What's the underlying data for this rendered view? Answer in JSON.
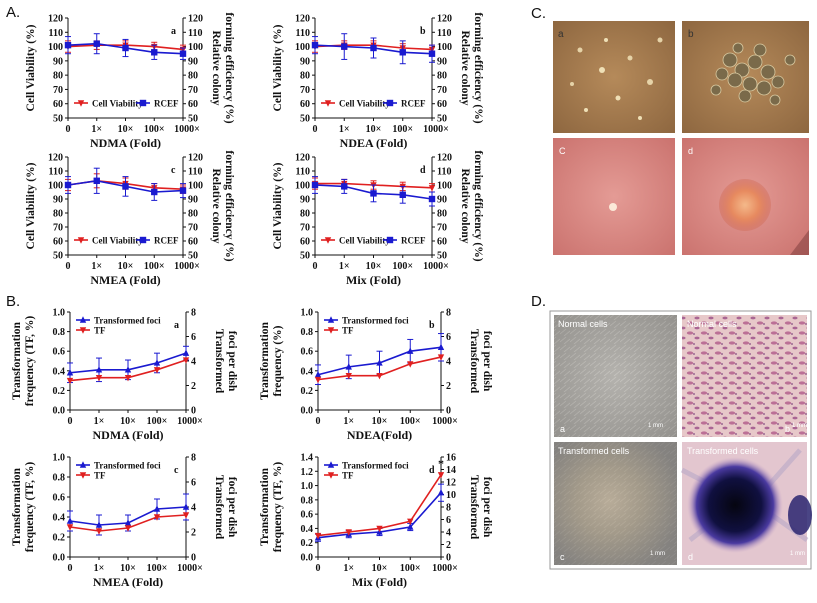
{
  "panels": {
    "A": "A.",
    "B": "B.",
    "C": "C.",
    "D": "D."
  },
  "chart_data": [
    {
      "id": "A-a",
      "type": "line",
      "sub": "a",
      "xlabel": "NDMA (Fold)",
      "ylabel": "Cell Viability (%)",
      "y2label": [
        "Relative colony",
        "forming efficiency (%)"
      ],
      "categories": [
        "0",
        "1×",
        "10×",
        "100×",
        "1000×"
      ],
      "ylim": [
        50,
        120
      ],
      "yticks": [
        50,
        60,
        70,
        80,
        90,
        100,
        110,
        120
      ],
      "y2lim": [
        50,
        120
      ],
      "y2ticks": [
        50,
        60,
        70,
        80,
        90,
        100,
        110,
        120
      ],
      "legend": "bottom",
      "series": [
        {
          "name": "Cell Viability",
          "color": "#e02020",
          "marker": "triangle-down",
          "values": [
            100,
            101,
            101,
            100,
            98
          ],
          "err": [
            4,
            3,
            3,
            3,
            3
          ]
        },
        {
          "name": "RCEF",
          "color": "#1a1ad0",
          "marker": "square",
          "values": [
            101,
            102,
            99,
            96,
            95
          ],
          "err": [
            6,
            7,
            6,
            5,
            4
          ]
        }
      ]
    },
    {
      "id": "A-b",
      "type": "line",
      "sub": "b",
      "xlabel": "NDEA (Fold)",
      "ylabel": "Cell Viability (%)",
      "y2label": [
        "Relative colony",
        "forming efficiency (%)"
      ],
      "categories": [
        "0",
        "1×",
        "10×",
        "100×",
        "1000×"
      ],
      "ylim": [
        50,
        120
      ],
      "yticks": [
        50,
        60,
        70,
        80,
        90,
        100,
        110,
        120
      ],
      "y2lim": [
        50,
        120
      ],
      "y2ticks": [
        50,
        60,
        70,
        80,
        90,
        100,
        110,
        120
      ],
      "legend": "bottom",
      "series": [
        {
          "name": "Cell Viability",
          "color": "#e02020",
          "marker": "triangle-down",
          "values": [
            100,
            101,
            101,
            99,
            98
          ],
          "err": [
            4,
            3,
            3,
            3,
            3
          ]
        },
        {
          "name": "RCEF",
          "color": "#1a1ad0",
          "marker": "square",
          "values": [
            101,
            100,
            99,
            96,
            95
          ],
          "err": [
            6,
            9,
            7,
            8,
            6
          ]
        }
      ]
    },
    {
      "id": "A-c",
      "type": "line",
      "sub": "c",
      "xlabel": "NMEA (Fold)",
      "ylabel": "Cell Viability (%)",
      "y2label": [
        "Relative colony",
        "forming efficiency (%)"
      ],
      "categories": [
        "0",
        "1×",
        "10×",
        "100×",
        "1000×"
      ],
      "ylim": [
        50,
        120
      ],
      "yticks": [
        50,
        60,
        70,
        80,
        90,
        100,
        110,
        120
      ],
      "y2lim": [
        50,
        120
      ],
      "y2ticks": [
        50,
        60,
        70,
        80,
        90,
        100,
        110,
        120
      ],
      "legend": "bottom",
      "series": [
        {
          "name": "Cell Viability",
          "color": "#e02020",
          "marker": "triangle-down",
          "values": [
            100,
            103,
            101,
            98,
            97
          ],
          "err": [
            4,
            5,
            4,
            3,
            3
          ]
        },
        {
          "name": "RCEF",
          "color": "#1a1ad0",
          "marker": "square",
          "values": [
            100,
            103,
            99,
            95,
            96
          ],
          "err": [
            6,
            9,
            7,
            6,
            5
          ]
        }
      ]
    },
    {
      "id": "A-d",
      "type": "line",
      "sub": "d",
      "xlabel": "Mix (Fold)",
      "ylabel": "Cell Viability (%)",
      "y2label": [
        "Relative colony",
        "forming efficiency (%)"
      ],
      "categories": [
        "0",
        "1×",
        "10×",
        "100×",
        "1000×"
      ],
      "ylim": [
        50,
        120
      ],
      "yticks": [
        50,
        60,
        70,
        80,
        90,
        100,
        110,
        120
      ],
      "y2lim": [
        50,
        120
      ],
      "y2ticks": [
        50,
        60,
        70,
        80,
        90,
        100,
        110,
        120
      ],
      "legend": "bottom",
      "series": [
        {
          "name": "Cell Viability",
          "color": "#e02020",
          "marker": "triangle-down",
          "values": [
            101,
            101,
            100,
            99,
            98
          ],
          "err": [
            4,
            3,
            3,
            3,
            3
          ]
        },
        {
          "name": "RCEF",
          "color": "#1a1ad0",
          "marker": "square",
          "values": [
            100,
            99,
            94,
            93,
            90
          ],
          "err": [
            6,
            5,
            6,
            6,
            5
          ]
        }
      ]
    },
    {
      "id": "B-a",
      "type": "line",
      "sub": "a",
      "xlabel": "NDMA (Fold)",
      "ylabel": [
        "Transformation",
        "frequency (TF, %)"
      ],
      "y2label": [
        "Transformed",
        "foci per dish"
      ],
      "categories": [
        "0",
        "1×",
        "10×",
        "100×",
        "1000×"
      ],
      "ylim": [
        0,
        1.0
      ],
      "yticks": [
        0,
        0.2,
        0.4,
        0.6,
        0.8,
        1.0
      ],
      "ytickfmt": 1,
      "y2lim": [
        0,
        8
      ],
      "y2ticks": [
        0,
        2,
        4,
        6,
        8
      ],
      "legend": "top",
      "series": [
        {
          "name": "Transformed foci",
          "color": "#1a1ad0",
          "marker": "triangle-up",
          "values": [
            0.38,
            0.41,
            0.41,
            0.48,
            0.58
          ],
          "err": [
            0.1,
            0.12,
            0.1,
            0.1,
            0.07
          ]
        },
        {
          "name": "TF",
          "color": "#e02020",
          "marker": "triangle-down",
          "values": [
            0.3,
            0.33,
            0.33,
            0.41,
            0.51
          ],
          "err": [
            0,
            0,
            0,
            0,
            0
          ]
        }
      ]
    },
    {
      "id": "B-b",
      "type": "line",
      "sub": "b",
      "xlabel": "NDEA(Fold)",
      "ylabel": [
        "Transformation",
        "frequency (%)"
      ],
      "y2label": [
        "Transformed",
        "foci per dish"
      ],
      "categories": [
        "0",
        "1×",
        "10×",
        "100×",
        "1000×"
      ],
      "ylim": [
        0,
        1.0
      ],
      "yticks": [
        0,
        0.2,
        0.4,
        0.6,
        0.8,
        1.0
      ],
      "ytickfmt": 1,
      "y2lim": [
        0,
        8
      ],
      "y2ticks": [
        0,
        2,
        4,
        6,
        8
      ],
      "legend": "top",
      "series": [
        {
          "name": "Transformed foci",
          "color": "#1a1ad0",
          "marker": "triangle-up",
          "values": [
            0.36,
            0.44,
            0.48,
            0.6,
            0.64
          ],
          "err": [
            0.1,
            0.12,
            0.12,
            0.12,
            0.14
          ]
        },
        {
          "name": "TF",
          "color": "#e02020",
          "marker": "triangle-down",
          "values": [
            0.31,
            0.35,
            0.35,
            0.47,
            0.54
          ],
          "err": [
            0,
            0,
            0,
            0,
            0
          ]
        }
      ]
    },
    {
      "id": "B-c",
      "type": "line",
      "sub": "c",
      "xlabel": "NMEA (Fold)",
      "ylabel": [
        "Transformation",
        "frequency (TF, %)"
      ],
      "y2label": [
        "Transformed",
        "foci per dish"
      ],
      "categories": [
        "0",
        "1×",
        "10×",
        "100×",
        "1000×"
      ],
      "ylim": [
        0,
        1.0
      ],
      "yticks": [
        0,
        0.2,
        0.4,
        0.6,
        0.8,
        1.0
      ],
      "ytickfmt": 1,
      "y2lim": [
        0,
        8
      ],
      "y2ticks": [
        0,
        2,
        4,
        6,
        8
      ],
      "legend": "top",
      "series": [
        {
          "name": "Transformed foci",
          "color": "#1a1ad0",
          "marker": "triangle-up",
          "values": [
            0.36,
            0.32,
            0.34,
            0.48,
            0.5
          ],
          "err": [
            0.1,
            0.1,
            0.08,
            0.1,
            0.13
          ]
        },
        {
          "name": "TF",
          "color": "#e02020",
          "marker": "triangle-down",
          "values": [
            0.3,
            0.26,
            0.29,
            0.4,
            0.42
          ],
          "err": [
            0,
            0,
            0,
            0,
            0
          ]
        }
      ]
    },
    {
      "id": "B-d",
      "type": "line",
      "sub": "d",
      "xlabel": "Mix (Fold)",
      "ylabel": [
        "Transformation",
        "frequency (TF, %)"
      ],
      "y2label": [
        "Transformed",
        "foci per dish"
      ],
      "categories": [
        "0",
        "1×",
        "10×",
        "100×",
        "1000×"
      ],
      "ylim": [
        0,
        1.4
      ],
      "yticks": [
        0,
        0.2,
        0.4,
        0.6,
        0.8,
        1.0,
        1.2,
        1.4
      ],
      "ytickfmt": 1,
      "y2lim": [
        0,
        16
      ],
      "y2ticks": [
        0,
        2,
        4,
        6,
        8,
        10,
        12,
        14,
        16
      ],
      "legend": "top",
      "annotation": "*",
      "series": [
        {
          "name": "Transformed foci",
          "color": "#1a1ad0",
          "marker": "triangle-up",
          "values": [
            0.27,
            0.32,
            0.35,
            0.42,
            0.9
          ],
          "err": [
            0.05,
            0.05,
            0.05,
            0.05,
            0.12
          ]
        },
        {
          "name": "TF",
          "color": "#e02020",
          "marker": "triangle-down",
          "values": [
            0.3,
            0.35,
            0.4,
            0.5,
            1.15
          ],
          "err": [
            0,
            0,
            0,
            0,
            0
          ]
        }
      ]
    }
  ],
  "photos_c": {
    "a": "a",
    "b": "b",
    "c": "C",
    "d": "d"
  },
  "photos_d": {
    "tl": {
      "title": "Normal cells",
      "sub": "a",
      "scale": "1 mm"
    },
    "tr": {
      "title": "Normal cells",
      "sub": "b",
      "scale": "1 mm"
    },
    "bl": {
      "title": "Transformed cells",
      "sub": "c",
      "scale": "1 mm"
    },
    "br": {
      "title": "Transformed cells",
      "sub": "d",
      "scale": "1 mm"
    }
  }
}
